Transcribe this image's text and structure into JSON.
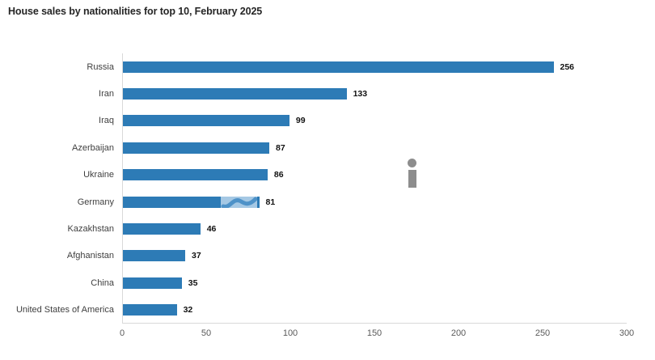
{
  "title": "House sales by nationalities for top 10, February 2025",
  "chart_data": {
    "type": "bar",
    "orientation": "horizontal",
    "title": "House sales by nationalities for top 10, February 2025",
    "categories": [
      "Russia",
      "Iran",
      "Iraq",
      "Azerbaijan",
      "Ukraine",
      "Germany",
      "Kazakhstan",
      "Afghanistan",
      "China",
      "United States of America"
    ],
    "values": [
      256,
      133,
      99,
      87,
      86,
      81,
      46,
      37,
      35,
      32
    ],
    "value_labels": [
      "256",
      "133",
      "99",
      "87",
      "86",
      "81",
      "46",
      "37",
      "35",
      "32"
    ],
    "xlabel": "",
    "ylabel": "",
    "xlim": [
      0,
      300
    ],
    "xticks": [
      0,
      50,
      100,
      150,
      200,
      250,
      300
    ],
    "grid": false,
    "legend": false,
    "bar_color": "#2d7bb6",
    "category_label_color": "#3f3f3f",
    "value_label_color": "#111111",
    "tick_label_color": "#5a5a5a",
    "axis_line_color": "#d9d9d9"
  },
  "icons": {
    "info_icon": "i",
    "info_icon_color": "#8d8d8d"
  },
  "watermark": {
    "row": "Germany",
    "light_color": "#a5c8e4",
    "swoosh_color": "#4e92c8"
  }
}
